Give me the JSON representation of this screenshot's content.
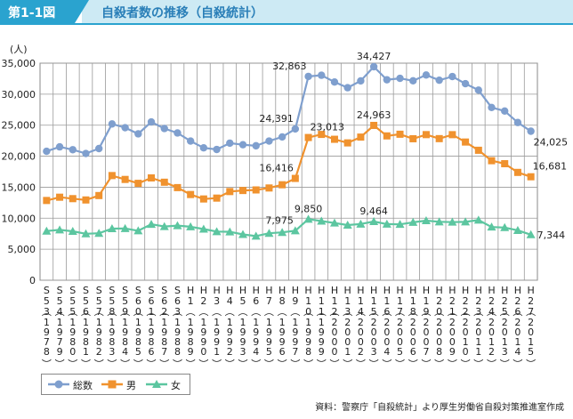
{
  "header": {
    "badge": "第1-1図",
    "title": "自殺者数の推移（自殺統計）"
  },
  "source": "資料：警察庁「自殺統計」より厚生労働省自殺対策推進室作成",
  "colors": {
    "total": "#7f9fce",
    "male": "#f0922e",
    "female": "#5cc6a0",
    "accent": "#2aa3cf"
  },
  "chart_data": {
    "type": "line",
    "title": "自殺者数の推移（自殺統計）",
    "ylabel": "(人)",
    "xlabel": "",
    "ylim": [
      0,
      35000
    ],
    "yticks": [
      0,
      5000,
      10000,
      15000,
      20000,
      25000,
      30000,
      35000
    ],
    "ytick_labels": [
      "0",
      "5,000",
      "10,000",
      "15,000",
      "20,000",
      "25,000",
      "30,000",
      "35,000"
    ],
    "grid": true,
    "legend_position": "bottom-left",
    "categories": [
      {
        "era": "S53",
        "year": "1978"
      },
      {
        "era": "S54",
        "year": "1979"
      },
      {
        "era": "S55",
        "year": "1980"
      },
      {
        "era": "S56",
        "year": "1981"
      },
      {
        "era": "S57",
        "year": "1982"
      },
      {
        "era": "S58",
        "year": "1983"
      },
      {
        "era": "S59",
        "year": "1984"
      },
      {
        "era": "S60",
        "year": "1985"
      },
      {
        "era": "S61",
        "year": "1986"
      },
      {
        "era": "S62",
        "year": "1987"
      },
      {
        "era": "S63",
        "year": "1988"
      },
      {
        "era": "H1",
        "year": "1989"
      },
      {
        "era": "H2",
        "year": "1990"
      },
      {
        "era": "H3",
        "year": "1991"
      },
      {
        "era": "H4",
        "year": "1992"
      },
      {
        "era": "H5",
        "year": "1993"
      },
      {
        "era": "H6",
        "year": "1994"
      },
      {
        "era": "H7",
        "year": "1995"
      },
      {
        "era": "H8",
        "year": "1996"
      },
      {
        "era": "H9",
        "year": "1997"
      },
      {
        "era": "H10",
        "year": "1998"
      },
      {
        "era": "H11",
        "year": "1999"
      },
      {
        "era": "H12",
        "year": "2000"
      },
      {
        "era": "H13",
        "year": "2001"
      },
      {
        "era": "H14",
        "year": "2002"
      },
      {
        "era": "H15",
        "year": "2003"
      },
      {
        "era": "H16",
        "year": "2004"
      },
      {
        "era": "H17",
        "year": "2005"
      },
      {
        "era": "H18",
        "year": "2006"
      },
      {
        "era": "H19",
        "year": "2007"
      },
      {
        "era": "H20",
        "year": "2008"
      },
      {
        "era": "H21",
        "year": "2009"
      },
      {
        "era": "H22",
        "year": "2010"
      },
      {
        "era": "H23",
        "year": "2011"
      },
      {
        "era": "H24",
        "year": "2012"
      },
      {
        "era": "H25",
        "year": "2013"
      },
      {
        "era": "H26",
        "year": "2014"
      },
      {
        "era": "H27",
        "year": "2015"
      }
    ],
    "series": [
      {
        "key": "total",
        "name": "総数",
        "marker": "circle",
        "values": [
          20788,
          21503,
          21048,
          20434,
          21228,
          25202,
          24596,
          23599,
          25524,
          24460,
          23742,
          22436,
          21346,
          21084,
          22104,
          21851,
          21679,
          22445,
          23104,
          24391,
          32863,
          33048,
          31957,
          31042,
          32143,
          34427,
          32325,
          32552,
          32155,
          33093,
          32249,
          32845,
          31690,
          30651,
          27858,
          27283,
          25427,
          24025
        ]
      },
      {
        "key": "male",
        "name": "男",
        "marker": "square",
        "values": [
          12859,
          13386,
          13155,
          12942,
          13654,
          16876,
          16251,
          15624,
          16497,
          15802,
          14934,
          13818,
          13102,
          13242,
          14296,
          14468,
          14560,
          14874,
          15393,
          16416,
          23013,
          23512,
          22727,
          22144,
          23080,
          24963,
          23272,
          23540,
          22813,
          23478,
          22831,
          23472,
          22283,
          20955,
          19273,
          18787,
          17386,
          16681
        ]
      },
      {
        "key": "female",
        "name": "女",
        "marker": "triangle",
        "values": [
          7929,
          8117,
          7893,
          7492,
          7574,
          8326,
          8345,
          7975,
          9027,
          8658,
          8808,
          8618,
          8244,
          7842,
          7808,
          7383,
          7119,
          7571,
          7711,
          7975,
          9850,
          9536,
          9230,
          8898,
          9063,
          9464,
          9053,
          9012,
          9342,
          9615,
          9418,
          9373,
          9407,
          9696,
          8585,
          8496,
          8041,
          7344
        ]
      }
    ],
    "annotations": [
      {
        "series": "total",
        "index": 19,
        "text": "24,391",
        "anchor": "above-left"
      },
      {
        "series": "total",
        "index": 20,
        "text": "32,863",
        "anchor": "above-left"
      },
      {
        "series": "total",
        "index": 25,
        "text": "34,427",
        "anchor": "above"
      },
      {
        "series": "total",
        "index": 37,
        "text": "24,025",
        "anchor": "below-right"
      },
      {
        "series": "male",
        "index": 19,
        "text": "16,416",
        "anchor": "above-left"
      },
      {
        "series": "male",
        "index": 20,
        "text": "23,013",
        "anchor": "above-right"
      },
      {
        "series": "male",
        "index": 25,
        "text": "24,963",
        "anchor": "above"
      },
      {
        "series": "male",
        "index": 37,
        "text": "16,681",
        "anchor": "above-right"
      },
      {
        "series": "female",
        "index": 19,
        "text": "7,975",
        "anchor": "above-left"
      },
      {
        "series": "female",
        "index": 20,
        "text": "9,850",
        "anchor": "above"
      },
      {
        "series": "female",
        "index": 25,
        "text": "9,464",
        "anchor": "above"
      },
      {
        "series": "female",
        "index": 37,
        "text": "7,344",
        "anchor": "right"
      }
    ]
  }
}
